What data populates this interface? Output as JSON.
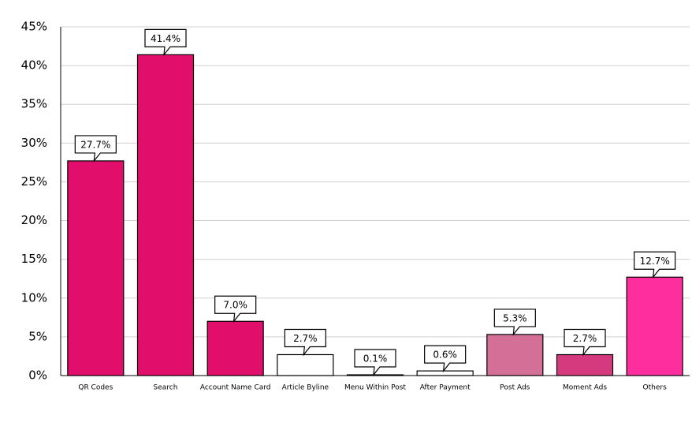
{
  "chart_data": {
    "type": "bar",
    "categories": [
      "QR Codes",
      "Search",
      "Account Name Card",
      "Article Byline",
      "Menu Within Post",
      "After Payment",
      "Post Ads",
      "Moment Ads",
      "Others"
    ],
    "values": [
      27.7,
      41.4,
      7.0,
      2.7,
      0.1,
      0.6,
      5.3,
      2.7,
      12.7
    ],
    "value_labels": [
      "27.7%",
      "41.4%",
      "7.0%",
      "2.7%",
      "0.1%",
      "0.6%",
      "5.3%",
      "2.7%",
      "12.7%"
    ],
    "colors": [
      "#e20e6b",
      "#e20e6b",
      "#e20e6b",
      "#ffffff",
      "#ffffff",
      "#ffffff",
      "#d47098",
      "#d63a7e",
      "#ff2e9e"
    ],
    "ylim": [
      0,
      45
    ],
    "yticks": [
      {
        "value": 0,
        "label": "0%"
      },
      {
        "value": 5,
        "label": "5%"
      },
      {
        "value": 10,
        "label": "10%"
      },
      {
        "value": 15,
        "label": "15%"
      },
      {
        "value": 20,
        "label": "20%"
      },
      {
        "value": 25,
        "label": "25%"
      },
      {
        "value": 30,
        "label": "30%"
      },
      {
        "value": 35,
        "label": "35%"
      },
      {
        "value": 40,
        "label": "40%"
      },
      {
        "value": 45,
        "label": "45%"
      }
    ],
    "grid": true
  }
}
